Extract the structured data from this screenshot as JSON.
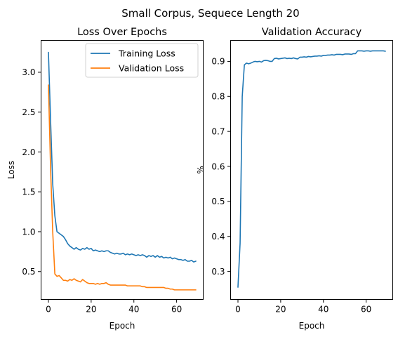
{
  "suptitle": "Small Corpus, Sequece Length 20",
  "colors": {
    "training": "#1f77b4",
    "validation": "#ff7f0e"
  },
  "chart_data": [
    {
      "type": "line",
      "title": "Loss Over Epochs",
      "xlabel": "Epoch",
      "ylabel": "Loss",
      "xlim": [
        -3.45,
        72.45
      ],
      "ylim": [
        0.15,
        3.4
      ],
      "xticks": [
        0,
        20,
        40,
        60
      ],
      "yticks": [
        0.5,
        1.0,
        1.5,
        2.0,
        2.5,
        3.0
      ],
      "xtick_labels": [
        "0",
        "20",
        "40",
        "60"
      ],
      "ytick_labels": [
        "0.5",
        "1.0",
        "1.5",
        "2.0",
        "2.5",
        "3.0"
      ],
      "legend_position": "top-right",
      "series": [
        {
          "name": "Training Loss",
          "color": "#1f77b4",
          "x": [
            0,
            1,
            2,
            3,
            4,
            5,
            6,
            7,
            8,
            9,
            10,
            11,
            12,
            13,
            14,
            15,
            16,
            17,
            18,
            19,
            20,
            21,
            22,
            23,
            24,
            25,
            26,
            27,
            28,
            29,
            30,
            31,
            32,
            33,
            34,
            35,
            36,
            37,
            38,
            39,
            40,
            41,
            42,
            43,
            44,
            45,
            46,
            47,
            48,
            49,
            50,
            51,
            52,
            53,
            54,
            55,
            56,
            57,
            58,
            59,
            60,
            61,
            62,
            63,
            64,
            65,
            66,
            67,
            68,
            69
          ],
          "values": [
            3.25,
            2.4,
            1.6,
            1.2,
            1.0,
            0.98,
            0.96,
            0.94,
            0.9,
            0.85,
            0.82,
            0.8,
            0.78,
            0.8,
            0.78,
            0.77,
            0.79,
            0.78,
            0.8,
            0.78,
            0.79,
            0.76,
            0.77,
            0.76,
            0.75,
            0.76,
            0.75,
            0.76,
            0.76,
            0.74,
            0.73,
            0.72,
            0.73,
            0.72,
            0.72,
            0.73,
            0.71,
            0.72,
            0.71,
            0.72,
            0.71,
            0.7,
            0.71,
            0.7,
            0.71,
            0.7,
            0.68,
            0.7,
            0.69,
            0.7,
            0.68,
            0.7,
            0.68,
            0.69,
            0.67,
            0.68,
            0.67,
            0.68,
            0.66,
            0.67,
            0.66,
            0.65,
            0.65,
            0.64,
            0.65,
            0.63,
            0.63,
            0.64,
            0.62,
            0.63
          ]
        },
        {
          "name": "Validation Loss",
          "color": "#ff7f0e",
          "x": [
            0,
            1,
            2,
            3,
            4,
            5,
            6,
            7,
            8,
            9,
            10,
            11,
            12,
            13,
            14,
            15,
            16,
            17,
            18,
            19,
            20,
            21,
            22,
            23,
            24,
            25,
            26,
            27,
            28,
            29,
            30,
            31,
            32,
            33,
            34,
            35,
            36,
            37,
            38,
            39,
            40,
            41,
            42,
            43,
            44,
            45,
            46,
            47,
            48,
            49,
            50,
            51,
            52,
            53,
            54,
            55,
            56,
            57,
            58,
            59,
            60,
            61,
            62,
            63,
            64,
            65,
            66,
            67,
            68,
            69
          ],
          "values": [
            2.84,
            1.8,
            1.0,
            0.47,
            0.44,
            0.45,
            0.42,
            0.39,
            0.39,
            0.38,
            0.4,
            0.39,
            0.41,
            0.39,
            0.38,
            0.37,
            0.4,
            0.38,
            0.36,
            0.35,
            0.35,
            0.35,
            0.34,
            0.35,
            0.34,
            0.35,
            0.35,
            0.36,
            0.34,
            0.33,
            0.33,
            0.33,
            0.33,
            0.33,
            0.33,
            0.33,
            0.33,
            0.32,
            0.32,
            0.32,
            0.32,
            0.32,
            0.32,
            0.32,
            0.31,
            0.31,
            0.3,
            0.3,
            0.3,
            0.3,
            0.3,
            0.3,
            0.3,
            0.3,
            0.3,
            0.29,
            0.29,
            0.28,
            0.28,
            0.27,
            0.27,
            0.27,
            0.27,
            0.27,
            0.27,
            0.27,
            0.27,
            0.27,
            0.27,
            0.27
          ]
        }
      ]
    },
    {
      "type": "line",
      "title": "Validation Accuracy",
      "xlabel": "Epoch",
      "ylabel": "%",
      "xlim": [
        -3.45,
        72.45
      ],
      "ylim": [
        0.22,
        0.96
      ],
      "xticks": [
        0,
        20,
        40,
        60
      ],
      "yticks": [
        0.3,
        0.4,
        0.5,
        0.6,
        0.7,
        0.8,
        0.9
      ],
      "xtick_labels": [
        "0",
        "20",
        "40",
        "60"
      ],
      "ytick_labels": [
        "0.3",
        "0.4",
        "0.5",
        "0.6",
        "0.7",
        "0.8",
        "0.9"
      ],
      "series": [
        {
          "name": "Validation Accuracy",
          "color": "#1f77b4",
          "x": [
            0,
            1,
            2,
            3,
            4,
            5,
            6,
            7,
            8,
            9,
            10,
            11,
            12,
            13,
            14,
            15,
            16,
            17,
            18,
            19,
            20,
            21,
            22,
            23,
            24,
            25,
            26,
            27,
            28,
            29,
            30,
            31,
            32,
            33,
            34,
            35,
            36,
            37,
            38,
            39,
            40,
            41,
            42,
            43,
            44,
            45,
            46,
            47,
            48,
            49,
            50,
            51,
            52,
            53,
            54,
            55,
            56,
            57,
            58,
            59,
            60,
            61,
            62,
            63,
            64,
            65,
            66,
            67,
            68,
            69
          ],
          "values": [
            0.255,
            0.38,
            0.8,
            0.89,
            0.895,
            0.893,
            0.895,
            0.898,
            0.9,
            0.899,
            0.9,
            0.898,
            0.902,
            0.903,
            0.902,
            0.9,
            0.9,
            0.908,
            0.909,
            0.907,
            0.908,
            0.909,
            0.91,
            0.908,
            0.909,
            0.908,
            0.91,
            0.908,
            0.907,
            0.912,
            0.912,
            0.913,
            0.912,
            0.914,
            0.913,
            0.914,
            0.915,
            0.915,
            0.916,
            0.915,
            0.917,
            0.917,
            0.918,
            0.918,
            0.919,
            0.918,
            0.92,
            0.92,
            0.92,
            0.919,
            0.921,
            0.921,
            0.921,
            0.92,
            0.922,
            0.922,
            0.93,
            0.93,
            0.93,
            0.929,
            0.93,
            0.93,
            0.929,
            0.93,
            0.93,
            0.93,
            0.93,
            0.93,
            0.93,
            0.929
          ]
        }
      ]
    }
  ]
}
